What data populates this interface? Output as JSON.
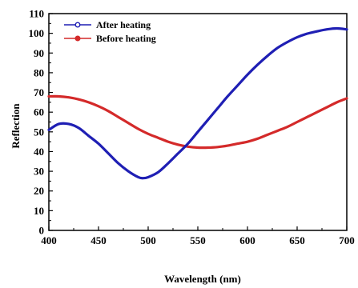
{
  "chart_data": {
    "type": "line",
    "xlabel": "Wavelength (nm)",
    "ylabel": "Reflection",
    "xlim": [
      400,
      700
    ],
    "ylim": [
      0,
      110
    ],
    "xticks": [
      400,
      450,
      500,
      550,
      600,
      650,
      700
    ],
    "yticks": [
      0,
      10,
      20,
      30,
      40,
      50,
      60,
      70,
      80,
      90,
      100,
      110
    ],
    "grid": false,
    "legend_position": "top-left",
    "series": [
      {
        "name": "After heating",
        "color": "#1f1fb4",
        "x": [
          400,
          410,
          420,
          430,
          440,
          450,
          460,
          470,
          480,
          490,
          495,
          500,
          510,
          520,
          530,
          540,
          550,
          560,
          570,
          580,
          590,
          600,
          610,
          620,
          630,
          640,
          650,
          660,
          670,
          680,
          690,
          700
        ],
        "y": [
          51,
          54,
          54,
          52,
          48,
          44,
          39,
          34,
          30,
          27,
          26.5,
          27,
          29.5,
          34,
          39,
          44,
          50,
          56,
          62,
          68,
          73.5,
          79,
          84,
          88.5,
          92.5,
          95.5,
          98,
          99.8,
          101,
          102,
          102.5,
          102
        ]
      },
      {
        "name": "Before heating",
        "color": "#d42a2a",
        "x": [
          400,
          410,
          420,
          430,
          440,
          450,
          460,
          470,
          480,
          490,
          500,
          510,
          520,
          530,
          540,
          550,
          560,
          570,
          580,
          590,
          600,
          610,
          620,
          630,
          640,
          650,
          660,
          670,
          680,
          690,
          700
        ],
        "y": [
          68,
          68,
          67.5,
          66.5,
          65,
          63,
          60.5,
          57.5,
          54.5,
          51.5,
          49,
          47,
          45,
          43.5,
          42.5,
          42,
          42,
          42.3,
          43,
          44,
          45,
          46.5,
          48.5,
          50.5,
          52.5,
          55,
          57.5,
          60,
          62.5,
          65,
          67
        ]
      }
    ]
  }
}
